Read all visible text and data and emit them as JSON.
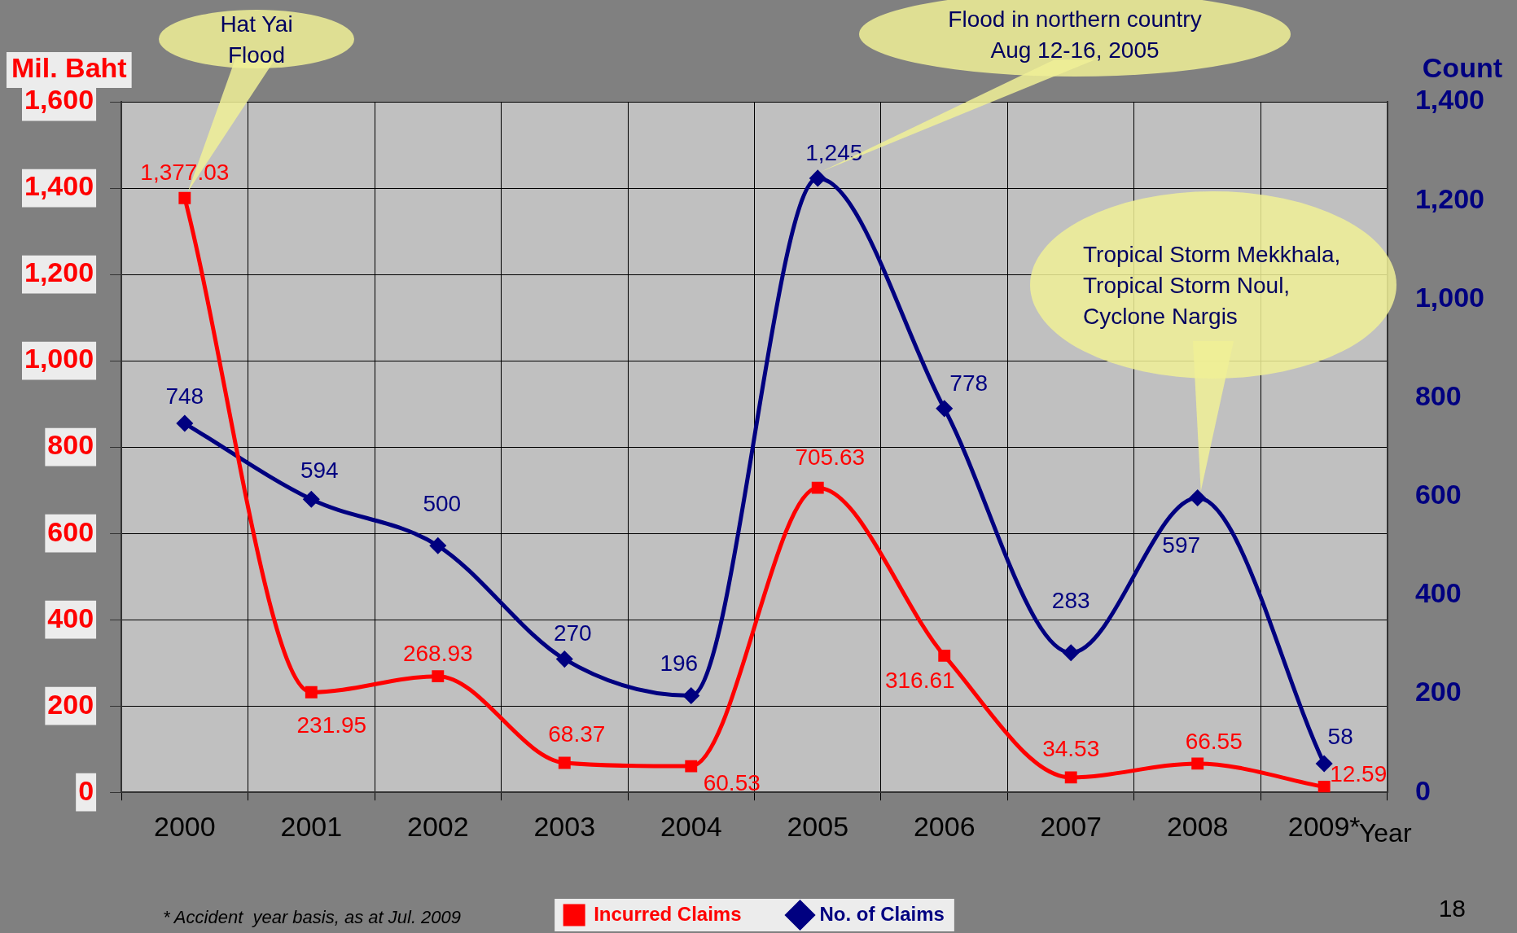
{
  "chart_data": {
    "type": "line",
    "categories": [
      "2000",
      "2001",
      "2002",
      "2003",
      "2004",
      "2005",
      "2006",
      "2007",
      "2008",
      "2009*"
    ],
    "series": [
      {
        "name": "Incurred Claims",
        "color": "#ff0000",
        "marker": "square",
        "values": [
          1377.03,
          231.95,
          268.93,
          68.37,
          60.53,
          705.63,
          316.61,
          34.53,
          66.55,
          12.59
        ],
        "value_labels": [
          "1,377.03",
          "231.95",
          "268.93",
          "68.37",
          "60.53",
          "705.63",
          "316.61",
          "34.53",
          "66.55",
          "12.59"
        ]
      },
      {
        "name": "No. of Claims",
        "color": "#000080",
        "marker": "diamond",
        "axis": "y2",
        "values": [
          748,
          594,
          500,
          270,
          196,
          1245,
          778,
          283,
          597,
          58
        ],
        "value_labels": [
          "748",
          "594",
          "500",
          "270",
          "196",
          "1,245",
          "778",
          "283",
          "597",
          "58"
        ]
      }
    ],
    "ylabel": "Mil. Baht",
    "y2label": "Count",
    "xlabel": "Year",
    "ylim": [
      0,
      1600
    ],
    "yticks": [
      {
        "value": 0,
        "label": "0"
      },
      {
        "value": 200,
        "label": "200"
      },
      {
        "value": 400,
        "label": "400"
      },
      {
        "value": 600,
        "label": "600"
      },
      {
        "value": 800,
        "label": "800"
      },
      {
        "value": 1000,
        "label": "1,000"
      },
      {
        "value": 1200,
        "label": "1,200"
      },
      {
        "value": 1400,
        "label": "1,400"
      },
      {
        "value": 1600,
        "label": "1,600"
      }
    ],
    "y2lim": [
      0,
      1400
    ],
    "y2ticks": [
      {
        "value": 0,
        "label": "0"
      },
      {
        "value": 200,
        "label": "200"
      },
      {
        "value": 400,
        "label": "400"
      },
      {
        "value": 600,
        "label": "600"
      },
      {
        "value": 800,
        "label": "800"
      },
      {
        "value": 1000,
        "label": "1,000"
      },
      {
        "value": 1200,
        "label": "1,200"
      },
      {
        "value": 1400,
        "label": "1,400"
      }
    ],
    "grid": true,
    "legend": "bottom",
    "annotations": [
      "Hat Yai Flood",
      "Flood in northern country Aug 12-16, 2005",
      "Tropical Storm Mekkhala, Tropical Storm Noul, Cyclone Nargis",
      "* Accident  year basis, as at Jul. 2009",
      "18"
    ]
  }
}
